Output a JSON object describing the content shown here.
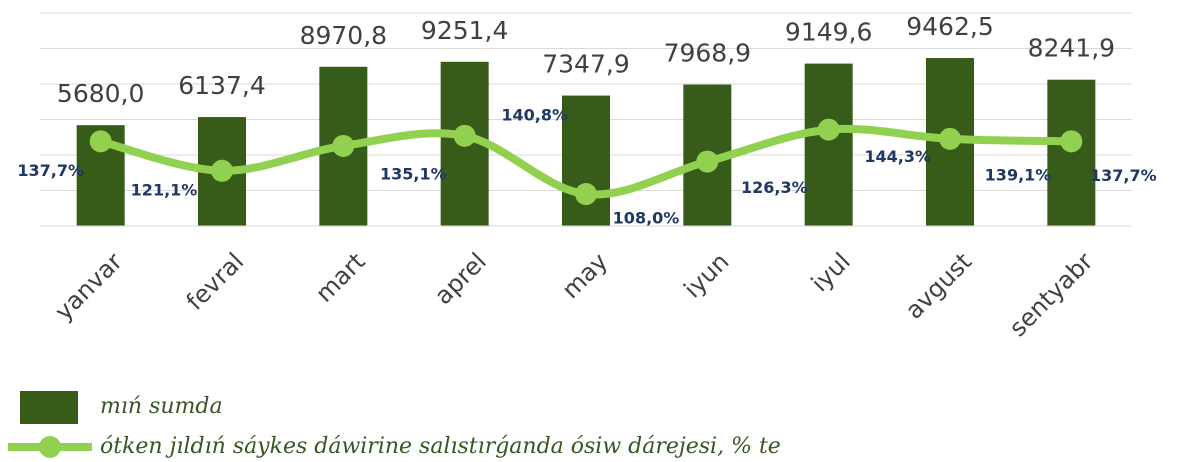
{
  "chart_data": {
    "type": "bar_line",
    "categories": [
      "yanvar",
      "fevral",
      "mart",
      "aprel",
      "may",
      "iyun",
      "iyul",
      "avgust",
      "sentyabr"
    ],
    "series": [
      {
        "name": "mıń sumda",
        "type": "bar",
        "color": "#375c1a",
        "values": [
          5680.0,
          6137.4,
          8970.8,
          9251.4,
          7347.9,
          7968.9,
          9149.6,
          9462.5,
          8241.9
        ],
        "value_labels": [
          "5680,0",
          "6137,4",
          "8970,8",
          "9251,4",
          "7347,9",
          "7968,9",
          "9149,6",
          "9462,5",
          "8241,9"
        ]
      },
      {
        "name": "ótken jıldıń sáykes dáwirine salıstırǵanda ósiw dárejesi, % te",
        "type": "line",
        "axis": "y2",
        "color": "#92d050",
        "values": [
          137.7,
          121.1,
          135.1,
          140.8,
          108.0,
          126.3,
          144.3,
          139.1,
          137.7
        ],
        "value_labels": [
          "137,7%",
          "121,1%",
          "135,1%",
          "140,8%",
          "108,0%",
          "126,3%",
          "144,3%",
          "139,1%",
          "137,7%"
        ]
      }
    ],
    "ylim": [
      0,
      12000
    ],
    "yticks": [
      0,
      2000,
      4000,
      6000,
      8000,
      10000,
      12000
    ],
    "y2lim": [
      90,
      210
    ],
    "grid": true,
    "legend": "bottom-left"
  }
}
